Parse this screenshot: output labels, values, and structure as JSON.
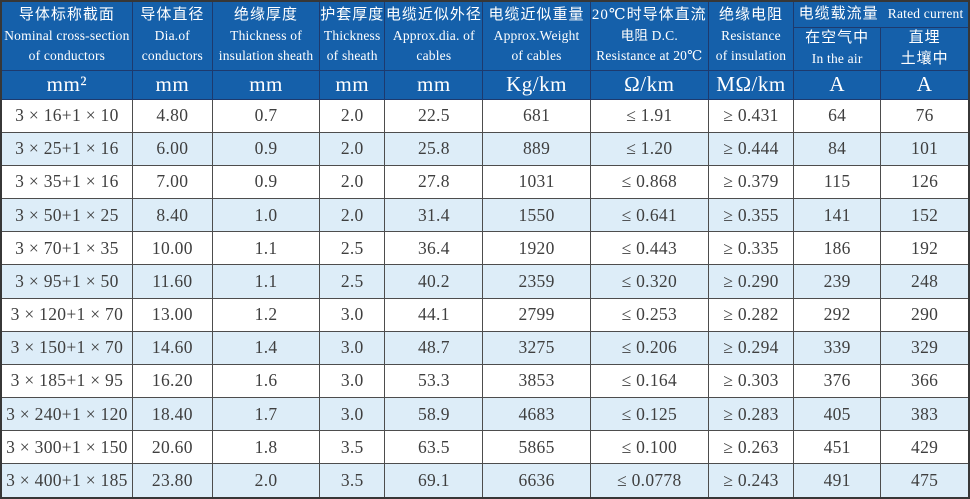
{
  "table": {
    "columns": [
      {
        "zh": "导体标称截面",
        "en1": "Nominal cross-section",
        "en2": "of conductors",
        "unit": "mm²"
      },
      {
        "zh": "导体直径",
        "en1": "Dia.of",
        "en2": "conductors",
        "unit": "mm"
      },
      {
        "zh": "绝缘厚度",
        "en1": "Thickness of",
        "en2": "insulation sheath",
        "unit": "mm"
      },
      {
        "zh": "护套厚度",
        "en1": "Thickness",
        "en2": "of sheath",
        "unit": "mm"
      },
      {
        "zh": "电缆近似外径",
        "en1": "Approx.dia. of",
        "en2": "cables",
        "unit": "mm"
      },
      {
        "zh": "电缆近似重量",
        "en1": "Approx.Weight",
        "en2": "of cables",
        "unit": "Kg/km"
      },
      {
        "zh": "20℃时导体直流",
        "en1": "电阻 D.C.",
        "en2": "Resistance at 20℃",
        "unit": "Ω/km"
      },
      {
        "zh": "绝缘电阻",
        "en1": "Resistance",
        "en2": "of insulation",
        "unit": "MΩ/km"
      }
    ],
    "current_group": {
      "zh": "电缆载流量",
      "en": "Rated current",
      "sub": [
        {
          "line1": "在空气中",
          "line2": "In the air",
          "unit": "A"
        },
        {
          "line1": "直埋",
          "line2": "土壤中",
          "unit": "A"
        }
      ]
    },
    "rows": [
      [
        "3 × 16+1 × 10",
        "4.80",
        "0.7",
        "2.0",
        "22.5",
        "681",
        "≤ 1.91",
        "≥ 0.431",
        "64",
        "76"
      ],
      [
        "3 × 25+1 × 16",
        "6.00",
        "0.9",
        "2.0",
        "25.8",
        "889",
        "≤ 1.20",
        "≥ 0.444",
        "84",
        "101"
      ],
      [
        "3 × 35+1 × 16",
        "7.00",
        "0.9",
        "2.0",
        "27.8",
        "1031",
        "≤ 0.868",
        "≥ 0.379",
        "115",
        "126"
      ],
      [
        "3 × 50+1 × 25",
        "8.40",
        "1.0",
        "2.0",
        "31.4",
        "1550",
        "≤ 0.641",
        "≥ 0.355",
        "141",
        "152"
      ],
      [
        "3 × 70+1 × 35",
        "10.00",
        "1.1",
        "2.5",
        "36.4",
        "1920",
        "≤ 0.443",
        "≥ 0.335",
        "186",
        "192"
      ],
      [
        "3 × 95+1 × 50",
        "11.60",
        "1.1",
        "2.5",
        "40.2",
        "2359",
        "≤ 0.320",
        "≥ 0.290",
        "239",
        "248"
      ],
      [
        "3 × 120+1 × 70",
        "13.00",
        "1.2",
        "3.0",
        "44.1",
        "2799",
        "≤ 0.253",
        "≥ 0.282",
        "292",
        "290"
      ],
      [
        "3 × 150+1 × 70",
        "14.60",
        "1.4",
        "3.0",
        "48.7",
        "3275",
        "≤ 0.206",
        "≥ 0.294",
        "339",
        "329"
      ],
      [
        "3 × 185+1 × 95",
        "16.20",
        "1.6",
        "3.0",
        "53.3",
        "3853",
        "≤ 0.164",
        "≥ 0.303",
        "376",
        "366"
      ],
      [
        "3 × 240+1 × 120",
        "18.40",
        "1.7",
        "3.0",
        "58.9",
        "4683",
        "≤ 0.125",
        "≥ 0.283",
        "405",
        "383"
      ],
      [
        "3 × 300+1 × 150",
        "20.60",
        "1.8",
        "3.5",
        "63.5",
        "5865",
        "≤ 0.100",
        "≥ 0.263",
        "451",
        "429"
      ],
      [
        "3 × 400+1 × 185",
        "23.80",
        "2.0",
        "3.5",
        "69.1",
        "6636",
        "≤ 0.0778",
        "≥ 0.243",
        "491",
        "475"
      ]
    ],
    "colors": {
      "header_blue": "#1560aa",
      "alt_row_blue": "#ddedf8",
      "header_border": "#1d3a6e",
      "body_border": "#4d4d4d",
      "header_text": "#ffffff",
      "body_text": "#3f3f3f"
    }
  }
}
